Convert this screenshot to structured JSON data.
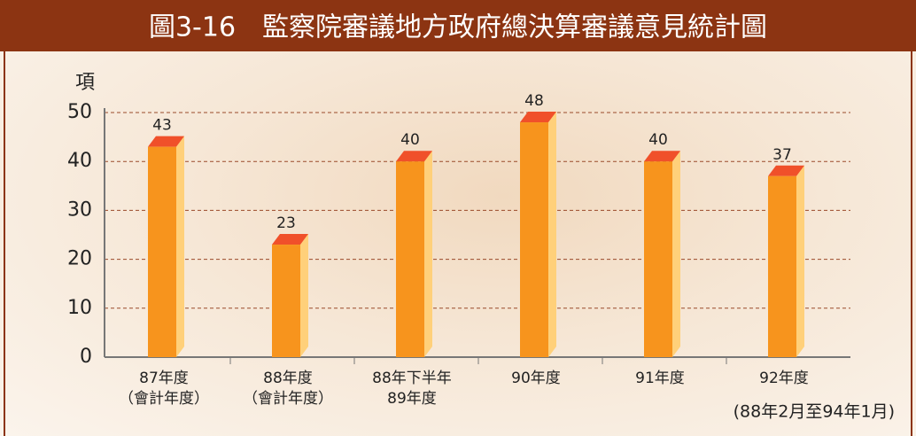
{
  "chart_data": {
    "type": "bar",
    "title": "圖3-16　監察院審議地方政府總決算審議意見統計圖",
    "y_label": "項",
    "note": "(88年2月至94年1月)",
    "categories": [
      "87年度\n（會計年度）",
      "88年度\n（會計年度）",
      "88年下半年\n89年度",
      "90年度",
      "91年度",
      "92年度"
    ],
    "values": [
      43,
      23,
      40,
      48,
      40,
      37
    ],
    "color": "#f7941d",
    "ylim": [
      0,
      50
    ],
    "yticks": [
      0,
      10,
      20,
      30,
      40,
      50
    ],
    "grid": true
  }
}
